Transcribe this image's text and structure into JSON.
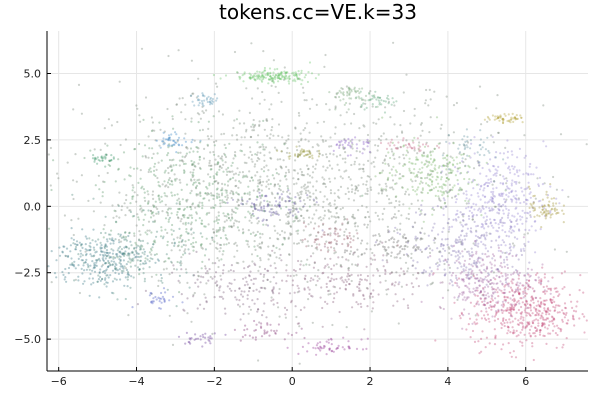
{
  "chart_data": {
    "type": "scatter",
    "title": "tokens.cc=VE.k=33",
    "xlabel": "",
    "ylabel": "",
    "xlim": [
      -6.3,
      7.6
    ],
    "ylim": [
      -6.2,
      6.6
    ],
    "grid": true,
    "legend": "none",
    "x_ticks": [
      -6,
      -4,
      -2,
      0,
      2,
      4,
      6
    ],
    "y_ticks": [
      -5.0,
      -2.5,
      0.0,
      2.5,
      5.0
    ],
    "x_tick_labels": [
      "−6",
      "−4",
      "−2",
      "0",
      "2",
      "4",
      "6"
    ],
    "y_tick_labels": [
      "−5.0",
      "−2.5",
      "0.0",
      "2.5",
      "5.0"
    ],
    "point_alpha": 0.35,
    "background_color": "#7f7f7f",
    "clusters": [
      {
        "x": 0.0,
        "y": 0.5,
        "sx": 2.6,
        "sy": 1.9,
        "n": 1400,
        "color": "#6f7f6f"
      },
      {
        "x": -2.5,
        "y": 0.3,
        "sx": 1.2,
        "sy": 1.2,
        "n": 450,
        "color": "#4f8f5f"
      },
      {
        "x": -5.0,
        "y": -2.0,
        "sx": 0.6,
        "sy": 0.5,
        "n": 260,
        "color": "#2f6f7f"
      },
      {
        "x": -4.0,
        "y": -1.8,
        "sx": 0.7,
        "sy": 0.7,
        "n": 180,
        "color": "#3f7f6f"
      },
      {
        "x": -0.5,
        "y": 4.9,
        "sx": 0.5,
        "sy": 0.12,
        "n": 160,
        "color": "#5fbf5f"
      },
      {
        "x": 1.5,
        "y": 4.2,
        "sx": 0.3,
        "sy": 0.2,
        "n": 50,
        "color": "#6fa06f"
      },
      {
        "x": 5.3,
        "y": 0.3,
        "sx": 0.6,
        "sy": 0.9,
        "n": 340,
        "color": "#8f7fcf"
      },
      {
        "x": 4.5,
        "y": -1.5,
        "sx": 0.8,
        "sy": 0.8,
        "n": 260,
        "color": "#7f6faf"
      },
      {
        "x": 6.0,
        "y": -4.0,
        "sx": 0.7,
        "sy": 0.7,
        "n": 480,
        "color": "#bf3f6f"
      },
      {
        "x": 5.0,
        "y": -2.8,
        "sx": 0.6,
        "sy": 0.6,
        "n": 260,
        "color": "#9f5f9f"
      },
      {
        "x": 3.5,
        "y": 1.2,
        "sx": 0.6,
        "sy": 0.6,
        "n": 220,
        "color": "#6faf5f"
      },
      {
        "x": 6.5,
        "y": 0.0,
        "sx": 0.2,
        "sy": 0.35,
        "n": 70,
        "color": "#9f8f2f"
      },
      {
        "x": 5.5,
        "y": 3.3,
        "sx": 0.25,
        "sy": 0.08,
        "n": 50,
        "color": "#af9f2f"
      },
      {
        "x": -3.0,
        "y": 2.5,
        "sx": 0.25,
        "sy": 0.15,
        "n": 40,
        "color": "#2f7fbf"
      },
      {
        "x": -2.2,
        "y": 4.0,
        "sx": 0.2,
        "sy": 0.12,
        "n": 35,
        "color": "#4f8faf"
      },
      {
        "x": -4.9,
        "y": 1.8,
        "sx": 0.15,
        "sy": 0.1,
        "n": 30,
        "color": "#2f8f5f"
      },
      {
        "x": 0.2,
        "y": 2.0,
        "sx": 0.2,
        "sy": 0.1,
        "n": 40,
        "color": "#8f8f2f"
      },
      {
        "x": 1.5,
        "y": 2.3,
        "sx": 0.3,
        "sy": 0.2,
        "n": 35,
        "color": "#7f4fbf"
      },
      {
        "x": 3.0,
        "y": 2.3,
        "sx": 0.3,
        "sy": 0.15,
        "n": 35,
        "color": "#bf5f7f"
      },
      {
        "x": 2.2,
        "y": 4.0,
        "sx": 0.3,
        "sy": 0.15,
        "n": 40,
        "color": "#4f9f6f"
      },
      {
        "x": 1.5,
        "y": -3.0,
        "sx": 1.0,
        "sy": 0.6,
        "n": 180,
        "color": "#7f4f6f"
      },
      {
        "x": -1.5,
        "y": -3.0,
        "sx": 0.9,
        "sy": 0.6,
        "n": 140,
        "color": "#6f4f6f"
      },
      {
        "x": -0.8,
        "y": -4.7,
        "sx": 0.35,
        "sy": 0.15,
        "n": 40,
        "color": "#7f2f6f"
      },
      {
        "x": 1.0,
        "y": -5.3,
        "sx": 0.4,
        "sy": 0.15,
        "n": 50,
        "color": "#8f2f8f"
      },
      {
        "x": -2.3,
        "y": -5.0,
        "sx": 0.25,
        "sy": 0.12,
        "n": 30,
        "color": "#5f2f8f"
      },
      {
        "x": -3.5,
        "y": -3.5,
        "sx": 0.25,
        "sy": 0.15,
        "n": 30,
        "color": "#3f4fbf"
      },
      {
        "x": -0.5,
        "y": 0.0,
        "sx": 0.5,
        "sy": 0.3,
        "n": 80,
        "color": "#5f4f9f"
      },
      {
        "x": 1.0,
        "y": -1.2,
        "sx": 0.4,
        "sy": 0.3,
        "n": 60,
        "color": "#8f4f5f"
      },
      {
        "x": 4.7,
        "y": 2.2,
        "sx": 0.3,
        "sy": 0.3,
        "n": 40,
        "color": "#5f8f9f"
      },
      {
        "x": 2.5,
        "y": -1.5,
        "sx": 0.6,
        "sy": 0.4,
        "n": 80,
        "color": "#5f5f5f"
      }
    ]
  }
}
